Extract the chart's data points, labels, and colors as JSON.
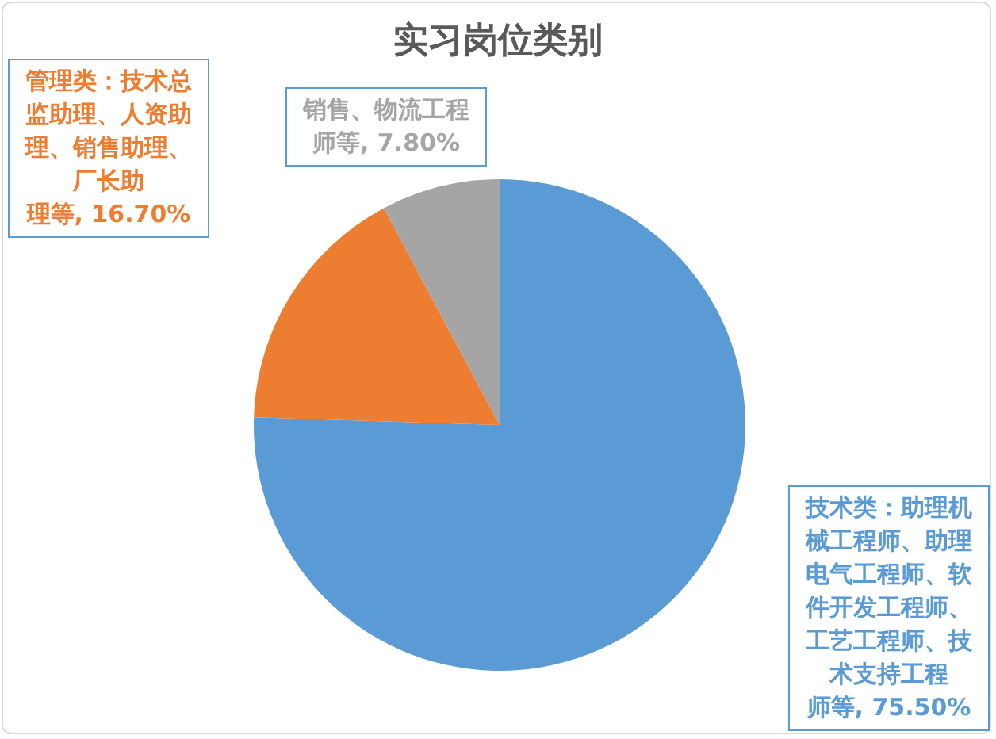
{
  "chart_data": {
    "type": "pie",
    "title": "实习岗位类别",
    "categories": [
      "技术类：助理机械工程师、助理电气工程师、软件开发工程师、工艺工程师、技术支持工程师等",
      "管理类：技术总监助理、人资助理、销售助理、厂长助理等",
      "销售、物流工程师等"
    ],
    "values": [
      75.5,
      16.7,
      7.8
    ],
    "colors": [
      "#5b9bd5",
      "#ed7d31",
      "#a5a5a5"
    ],
    "value_labels": [
      "75.50%",
      "16.70%",
      "7.80%"
    ]
  }
}
